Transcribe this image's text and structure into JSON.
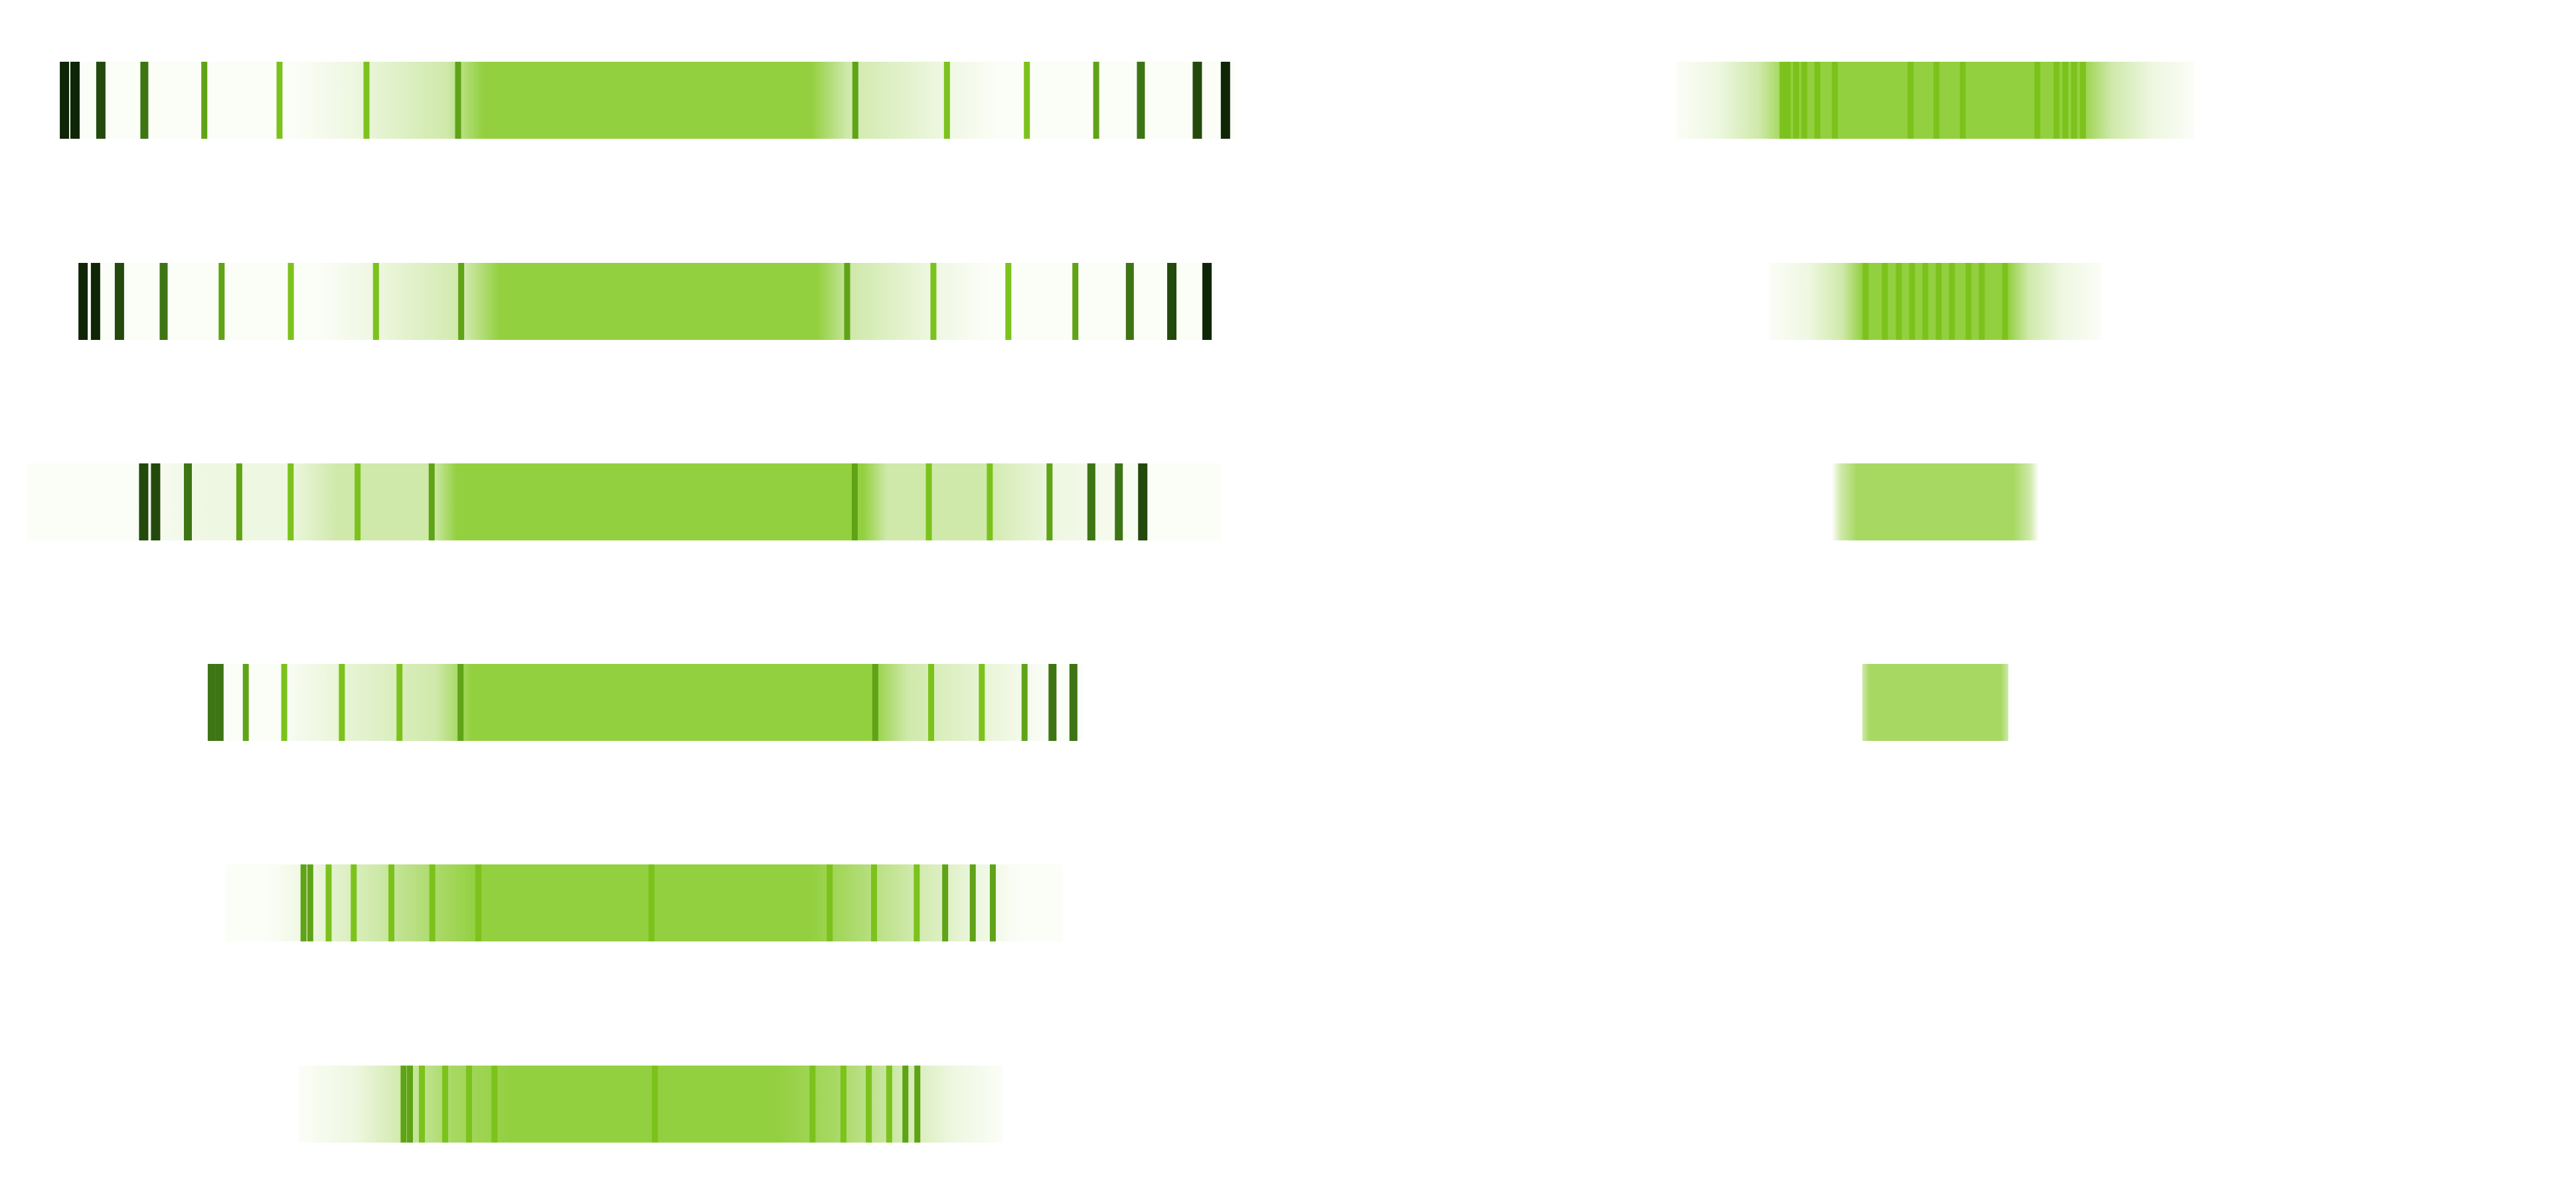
{
  "palette": {
    "background": "#ffffff",
    "fade": "#fbfdf7",
    "pale": "#eef7e1",
    "light": "#cfe9aa",
    "mid": "#a7d862",
    "core": "#93d040",
    "line_bright": "#7cc21c",
    "line_mid": "#5fa317",
    "line_dark": "#3d7514",
    "line_darker": "#234a0c",
    "line_darkest": "#0f2606"
  },
  "columns": [
    {
      "bands": [
        {
          "fade_style": "hard",
          "stops": [
            [
              0.0,
              "fade"
            ],
            [
              0.2,
              "fade"
            ],
            [
              0.25,
              "pale"
            ],
            [
              0.33,
              "light"
            ],
            [
              0.36,
              "core"
            ],
            [
              0.64,
              "core"
            ],
            [
              0.67,
              "light"
            ],
            [
              0.75,
              "pale"
            ],
            [
              0.8,
              "fade"
            ],
            [
              1.0,
              "fade"
            ]
          ],
          "lines": [
            [
              0.004,
              "line_darkest"
            ],
            [
              0.013,
              "line_darkest"
            ],
            [
              0.035,
              "line_darker"
            ],
            [
              0.072,
              "line_dark"
            ],
            [
              0.123,
              "line_mid"
            ],
            [
              0.187,
              "line_bright"
            ],
            [
              0.261,
              "line_bright"
            ],
            [
              0.339,
              "line_mid"
            ],
            [
              0.677,
              "line_mid"
            ],
            [
              0.755,
              "line_bright"
            ],
            [
              0.823,
              "line_bright"
            ],
            [
              0.882,
              "line_mid"
            ],
            [
              0.92,
              "line_dark"
            ],
            [
              0.968,
              "line_darker"
            ],
            [
              0.992,
              "line_darkest"
            ]
          ]
        },
        {
          "fade_style": "hard",
          "stops": [
            [
              0.0,
              "fade"
            ],
            [
              0.21,
              "fade"
            ],
            [
              0.26,
              "pale"
            ],
            [
              0.34,
              "light"
            ],
            [
              0.37,
              "core"
            ],
            [
              0.65,
              "core"
            ],
            [
              0.68,
              "light"
            ],
            [
              0.75,
              "pale"
            ],
            [
              0.8,
              "fade"
            ],
            [
              1.0,
              "fade"
            ]
          ],
          "lines": [
            [
              0.003,
              "line_darkest"
            ],
            [
              0.014,
              "line_darkest"
            ],
            [
              0.035,
              "line_darker"
            ],
            [
              0.074,
              "line_dark"
            ],
            [
              0.125,
              "line_mid"
            ],
            [
              0.186,
              "line_bright"
            ],
            [
              0.261,
              "line_bright"
            ],
            [
              0.336,
              "line_mid"
            ],
            [
              0.676,
              "line_mid"
            ],
            [
              0.752,
              "line_bright"
            ],
            [
              0.818,
              "line_bright"
            ],
            [
              0.877,
              "line_mid"
            ],
            [
              0.925,
              "line_dark"
            ],
            [
              0.962,
              "line_darker"
            ],
            [
              0.993,
              "line_darkest"
            ]
          ]
        },
        {
          "fade_style": "soft",
          "stops": [
            [
              0.0,
              "fade"
            ],
            [
              0.09,
              "fade"
            ],
            [
              0.15,
              "pale"
            ],
            [
              0.22,
              "pale"
            ],
            [
              0.26,
              "light"
            ],
            [
              0.34,
              "light"
            ],
            [
              0.36,
              "core"
            ],
            [
              0.7,
              "core"
            ],
            [
              0.72,
              "light"
            ],
            [
              0.8,
              "light"
            ],
            [
              0.86,
              "pale"
            ],
            [
              0.94,
              "fade"
            ],
            [
              1.0,
              "fade"
            ]
          ],
          "lines": [
            [
              0.098,
              "line_darker"
            ],
            [
              0.108,
              "line_darker"
            ],
            [
              0.135,
              "line_dark"
            ],
            [
              0.178,
              "line_mid"
            ],
            [
              0.221,
              "line_bright"
            ],
            [
              0.277,
              "line_bright"
            ],
            [
              0.339,
              "line_mid"
            ],
            [
              0.693,
              "line_mid"
            ],
            [
              0.755,
              "line_bright"
            ],
            [
              0.806,
              "line_bright"
            ],
            [
              0.856,
              "line_mid"
            ],
            [
              0.891,
              "line_dark"
            ],
            [
              0.914,
              "line_dark"
            ],
            [
              0.934,
              "line_darker"
            ]
          ]
        },
        {
          "fade_style": "hard",
          "stops": [
            [
              0.0,
              "fade"
            ],
            [
              0.08,
              "fade"
            ],
            [
              0.13,
              "pale"
            ],
            [
              0.26,
              "light"
            ],
            [
              0.3,
              "core"
            ],
            [
              0.76,
              "core"
            ],
            [
              0.8,
              "light"
            ],
            [
              0.91,
              "pale"
            ],
            [
              0.96,
              "fade"
            ],
            [
              1.0,
              "fade"
            ]
          ],
          "lines": [
            [
              0.003,
              "line_dark"
            ],
            [
              0.012,
              "line_dark"
            ],
            [
              0.042,
              "line_mid"
            ],
            [
              0.086,
              "line_bright"
            ],
            [
              0.152,
              "line_bright"
            ],
            [
              0.218,
              "line_bright"
            ],
            [
              0.288,
              "line_mid"
            ],
            [
              0.763,
              "line_mid"
            ],
            [
              0.827,
              "line_bright"
            ],
            [
              0.885,
              "line_bright"
            ],
            [
              0.934,
              "line_mid"
            ],
            [
              0.966,
              "line_dark"
            ],
            [
              0.99,
              "line_dark"
            ]
          ]
        },
        {
          "fade_style": "soft",
          "stops": [
            [
              0.0,
              "fade"
            ],
            [
              0.05,
              "fade"
            ],
            [
              0.1,
              "pale"
            ],
            [
              0.18,
              "light"
            ],
            [
              0.26,
              "mid"
            ],
            [
              0.3,
              "core"
            ],
            [
              0.7,
              "core"
            ],
            [
              0.74,
              "mid"
            ],
            [
              0.82,
              "light"
            ],
            [
              0.9,
              "pale"
            ],
            [
              0.95,
              "fade"
            ],
            [
              1.0,
              "fade"
            ]
          ],
          "lines": [
            [
              0.093,
              "line_mid"
            ],
            [
              0.101,
              "line_mid"
            ],
            [
              0.123,
              "line_bright"
            ],
            [
              0.153,
              "line_bright"
            ],
            [
              0.198,
              "line_bright"
            ],
            [
              0.247,
              "line_bright"
            ],
            [
              0.302,
              "line_bright"
            ],
            [
              0.509,
              "line_bright"
            ],
            [
              0.722,
              "line_bright"
            ],
            [
              0.775,
              "line_bright"
            ],
            [
              0.826,
              "line_bright"
            ],
            [
              0.86,
              "line_mid"
            ],
            [
              0.893,
              "line_mid"
            ],
            [
              0.917,
              "line_mid"
            ]
          ]
        },
        {
          "fade_style": "soft",
          "stops": [
            [
              0.0,
              "fade"
            ],
            [
              0.08,
              "pale"
            ],
            [
              0.15,
              "light"
            ],
            [
              0.22,
              "mid"
            ],
            [
              0.3,
              "core"
            ],
            [
              0.68,
              "core"
            ],
            [
              0.76,
              "mid"
            ],
            [
              0.85,
              "light"
            ],
            [
              0.93,
              "pale"
            ],
            [
              1.0,
              "fade"
            ]
          ],
          "lines": [
            [
              0.149,
              "line_mid"
            ],
            [
              0.158,
              "line_mid"
            ],
            [
              0.175,
              "line_bright"
            ],
            [
              0.208,
              "line_bright"
            ],
            [
              0.242,
              "line_bright"
            ],
            [
              0.278,
              "line_bright"
            ],
            [
              0.506,
              "line_bright"
            ],
            [
              0.73,
              "line_bright"
            ],
            [
              0.774,
              "line_bright"
            ],
            [
              0.81,
              "line_bright"
            ],
            [
              0.839,
              "line_bright"
            ],
            [
              0.862,
              "line_mid"
            ],
            [
              0.879,
              "line_mid"
            ]
          ]
        }
      ]
    },
    {
      "bands": [
        {
          "fade_style": "soft",
          "stops": [
            [
              0.0,
              "fade"
            ],
            [
              0.08,
              "pale"
            ],
            [
              0.16,
              "light"
            ],
            [
              0.22,
              "core"
            ],
            [
              0.78,
              "core"
            ],
            [
              0.84,
              "light"
            ],
            [
              0.92,
              "pale"
            ],
            [
              1.0,
              "fade"
            ]
          ],
          "lines": [
            [
              0.205,
              "line_bright"
            ],
            [
              0.215,
              "line_bright"
            ],
            [
              0.231,
              "line_bright"
            ],
            [
              0.247,
              "line_bright"
            ],
            [
              0.272,
              "line_bright"
            ],
            [
              0.306,
              "line_bright"
            ],
            [
              0.452,
              "line_bright"
            ],
            [
              0.502,
              "line_bright"
            ],
            [
              0.553,
              "line_bright"
            ],
            [
              0.697,
              "line_bright"
            ],
            [
              0.734,
              "line_bright"
            ],
            [
              0.751,
              "line_bright"
            ],
            [
              0.768,
              "line_bright"
            ],
            [
              0.785,
              "line_bright"
            ]
          ]
        },
        {
          "fade_style": "soft",
          "stops": [
            [
              0.0,
              "fade"
            ],
            [
              0.12,
              "pale"
            ],
            [
              0.22,
              "light"
            ],
            [
              0.28,
              "core"
            ],
            [
              0.72,
              "core"
            ],
            [
              0.78,
              "light"
            ],
            [
              0.88,
              "pale"
            ],
            [
              1.0,
              "fade"
            ]
          ],
          "lines": [
            [
              0.29,
              "line_bright"
            ],
            [
              0.348,
              "line_bright"
            ],
            [
              0.39,
              "line_bright"
            ],
            [
              0.43,
              "line_bright"
            ],
            [
              0.47,
              "line_bright"
            ],
            [
              0.51,
              "line_bright"
            ],
            [
              0.55,
              "line_bright"
            ],
            [
              0.6,
              "line_bright"
            ],
            [
              0.64,
              "line_bright"
            ],
            [
              0.71,
              "line_bright"
            ]
          ]
        },
        {
          "fade_style": "soft",
          "stops": [
            [
              0.0,
              "fade"
            ],
            [
              0.04,
              "light"
            ],
            [
              0.12,
              "mid"
            ],
            [
              0.5,
              "mid"
            ],
            [
              0.88,
              "mid"
            ],
            [
              0.96,
              "light"
            ],
            [
              1.0,
              "fade"
            ]
          ],
          "lines": [
            [
              0.4,
              "mid"
            ],
            [
              0.6,
              "mid"
            ]
          ]
        },
        {
          "fade_style": "soft",
          "stops": [
            [
              0.0,
              "light"
            ],
            [
              0.05,
              "mid"
            ],
            [
              0.95,
              "mid"
            ],
            [
              1.0,
              "light"
            ]
          ],
          "lines": []
        }
      ]
    }
  ]
}
